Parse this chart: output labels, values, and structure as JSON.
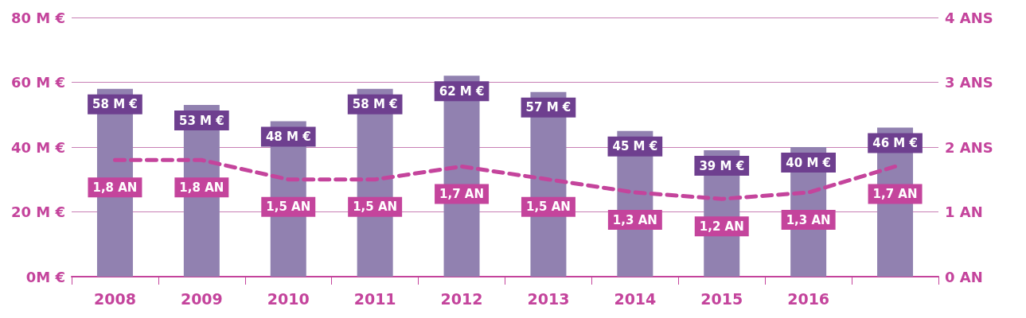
{
  "chart_data": {
    "type": "bar",
    "categories": [
      "2008",
      "2009",
      "2010",
      "2011",
      "2012",
      "2013",
      "2014",
      "2015",
      "2016",
      null
    ],
    "series": [
      {
        "color": "#9181b0",
        "values": [
          58,
          53,
          48,
          58,
          62,
          57,
          45,
          39,
          40,
          46
        ],
        "value_labels": [
          "58 M €",
          "53 M €",
          "48 M €",
          "58 M €",
          "62 M €",
          "57 M €",
          "45 M €",
          "39 M €",
          "40 M €",
          "46 M €"
        ]
      },
      {
        "type": "line",
        "axis": "y2",
        "color": "#c4449c",
        "line_style": "dashed",
        "marker": "none",
        "values": [
          1.8,
          1.8,
          1.5,
          1.5,
          1.7,
          1.5,
          1.3,
          1.2,
          1.3,
          1.7
        ],
        "value_labels": [
          "1,8 AN",
          "1,8 AN",
          "1,5 AN",
          "1,5 AN",
          "1,7 AN",
          "1,5 AN",
          "1,3 AN",
          "1,2 AN",
          "1,3 AN",
          "1,7 AN"
        ]
      }
    ],
    "ylim": [
      0,
      80
    ],
    "yticks": [
      {
        "value": 0,
        "label": "0M €"
      },
      {
        "value": 20,
        "label": "20 M €"
      },
      {
        "value": 40,
        "label": "40 M €"
      },
      {
        "value": 60,
        "label": "60 M €"
      },
      {
        "value": 80,
        "label": "80 M €"
      }
    ],
    "y2lim": [
      0,
      4
    ],
    "y2ticks": [
      {
        "value": 0,
        "label": "0 AN"
      },
      {
        "value": 1,
        "label": "1 AN"
      },
      {
        "value": 2,
        "label": "2 ANS"
      },
      {
        "value": 3,
        "label": "3 ANS"
      },
      {
        "value": 4,
        "label": "4 ANS"
      }
    ],
    "grid": "y"
  }
}
